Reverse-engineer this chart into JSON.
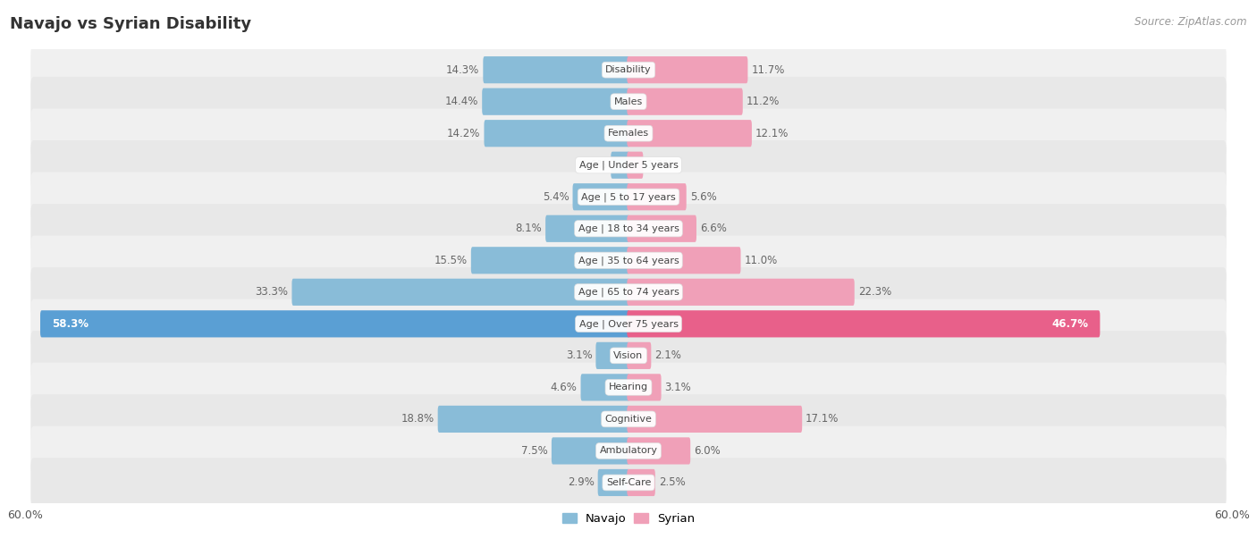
{
  "title": "Navajo vs Syrian Disability",
  "source": "Source: ZipAtlas.com",
  "categories": [
    "Disability",
    "Males",
    "Females",
    "Age | Under 5 years",
    "Age | 5 to 17 years",
    "Age | 18 to 34 years",
    "Age | 35 to 64 years",
    "Age | 65 to 74 years",
    "Age | Over 75 years",
    "Vision",
    "Hearing",
    "Cognitive",
    "Ambulatory",
    "Self-Care"
  ],
  "navajo": [
    14.3,
    14.4,
    14.2,
    1.6,
    5.4,
    8.1,
    15.5,
    33.3,
    58.3,
    3.1,
    4.6,
    18.8,
    7.5,
    2.9
  ],
  "syrian": [
    11.7,
    11.2,
    12.1,
    1.3,
    5.6,
    6.6,
    11.0,
    22.3,
    46.7,
    2.1,
    3.1,
    17.1,
    6.0,
    2.5
  ],
  "navajo_color": "#89bcd8",
  "syrian_color": "#f0a0b8",
  "navajo_highlight": "#5a9fd4",
  "syrian_highlight": "#e8608a",
  "axis_max": 60.0,
  "row_color_light": "#f0f0f0",
  "row_color_dark": "#e8e8e8",
  "label_bg": "#ffffff",
  "text_color_dark": "#666666",
  "text_color_white": "#ffffff"
}
